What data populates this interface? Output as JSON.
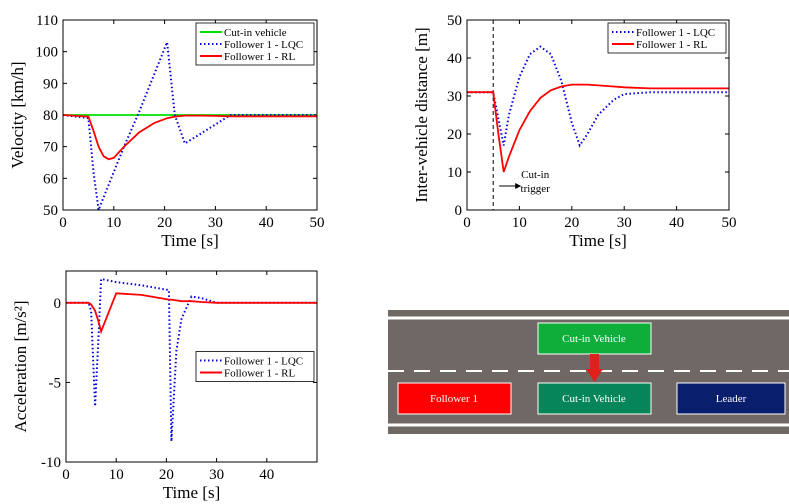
{
  "chart_data": [
    {
      "type": "line",
      "x_label": "Time [s]",
      "y_label": "Velocity [km/h]",
      "x": [
        0,
        5,
        6,
        7,
        8,
        9,
        10,
        12,
        15,
        18,
        20.5,
        22,
        24,
        27,
        30,
        33,
        40,
        50
      ],
      "series": [
        {
          "name": "Cut-in vehicle",
          "color": "#00e000",
          "style": "solid",
          "values": [
            80,
            80,
            80,
            80,
            80,
            80,
            80,
            80,
            80,
            80,
            80,
            80,
            80,
            80,
            80,
            80,
            80,
            80
          ]
        },
        {
          "name": "Follower 1 - LQC",
          "color": "#0000e0",
          "style": "dotted",
          "values": [
            80,
            79,
            62,
            50,
            54,
            58,
            62,
            70,
            81,
            93,
            103,
            80,
            71,
            74,
            77,
            80,
            80,
            80
          ]
        },
        {
          "name": "Follower 1 - RL",
          "color": "#ff0000",
          "style": "solid",
          "values": [
            80,
            79.5,
            75,
            70,
            67,
            66,
            66.5,
            70,
            74.5,
            77.5,
            79,
            79.5,
            79.8,
            79.8,
            79.7,
            79.6,
            79.6,
            79.6
          ]
        }
      ],
      "xlim": [
        0,
        50
      ],
      "xticks": [
        0,
        10,
        20,
        30,
        40,
        50
      ],
      "ylim": [
        50,
        110
      ],
      "yticks": [
        50,
        60,
        70,
        80,
        90,
        100,
        110
      ],
      "legend": "upper right"
    },
    {
      "type": "line",
      "x_label": "Time [s]",
      "y_label": "Inter-vehicle distance [m]",
      "x": [
        0,
        5,
        6,
        7,
        8,
        10,
        12,
        14,
        16,
        18,
        20,
        21.5,
        23,
        25,
        28,
        30,
        35,
        40,
        50
      ],
      "series": [
        {
          "name": "Follower 1 - LQC",
          "color": "#0000e0",
          "style": "dotted",
          "values": [
            31,
            31,
            24,
            17,
            25,
            35,
            41,
            43,
            41,
            34,
            23,
            17,
            20,
            25,
            29,
            30.5,
            31,
            31,
            31
          ]
        },
        {
          "name": "Follower 1 - RL",
          "color": "#ff0000",
          "style": "solid",
          "values": [
            31,
            31,
            20,
            10,
            14,
            21,
            26,
            29.5,
            31.5,
            32.5,
            33,
            33,
            33,
            32.8,
            32.5,
            32.3,
            32,
            32,
            32
          ]
        }
      ],
      "xlim": [
        0,
        50
      ],
      "xticks": [
        0,
        10,
        20,
        30,
        40,
        50
      ],
      "ylim": [
        0,
        50
      ],
      "yticks": [
        0,
        10,
        20,
        30,
        40,
        50
      ],
      "legend": "upper right",
      "vline": 5,
      "annotation": [
        "Cut-in",
        "trigger"
      ]
    },
    {
      "type": "line",
      "x_label": "Time [s]",
      "y_label": "Acceleration [m/s²]",
      "x": [
        0,
        4.5,
        5,
        5.8,
        6.5,
        7,
        10,
        15,
        20.5,
        20.7,
        21,
        22,
        23,
        25,
        27,
        30,
        40,
        50
      ],
      "series": [
        {
          "name": "Follower 1 - LQC",
          "color": "#0000e0",
          "style": "dotted",
          "values": [
            0,
            0,
            -0.5,
            -6.5,
            -2,
            1.5,
            1.3,
            1.1,
            0.8,
            -3,
            -8.7,
            -3,
            -1,
            0.4,
            0.3,
            0,
            0,
            0
          ]
        },
        {
          "name": "Follower 1 - RL",
          "color": "#ff0000",
          "style": "solid",
          "values": [
            0,
            0,
            -0.1,
            -0.5,
            -1.2,
            -1.8,
            0.6,
            0.5,
            0.2,
            0.2,
            0.2,
            0.15,
            0.1,
            0.1,
            0.05,
            0,
            0,
            0
          ]
        }
      ],
      "xlim": [
        0,
        50
      ],
      "xticks": [
        0,
        10,
        20,
        30,
        40
      ],
      "ylim": [
        -10,
        2
      ],
      "yticks": [
        -10,
        -5,
        0
      ],
      "legend": "center right"
    }
  ],
  "diagram": {
    "cut_in_top": "Cut-in Vehicle",
    "follower": "Follower 1",
    "cut_in_lane": "Cut-in Vehicle",
    "leader": "Leader"
  }
}
